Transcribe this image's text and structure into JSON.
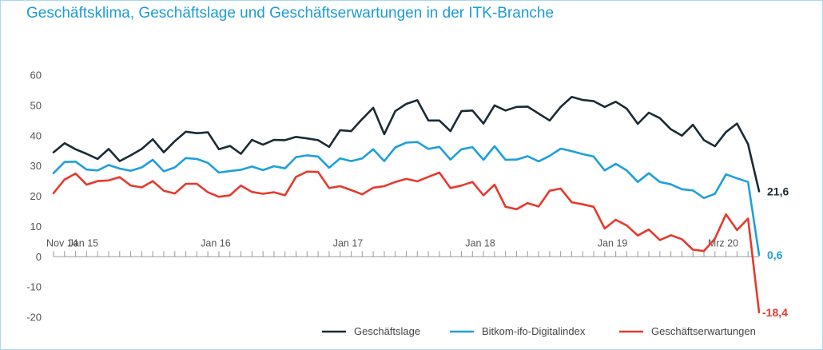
{
  "chart_data": {
    "type": "line",
    "title": "Geschäftsklima, Geschäftslage und Geschäftserwartungen in der ITK-Branche",
    "xlabel": "",
    "ylabel": "",
    "ylim": [
      -20,
      60
    ],
    "yticks": [
      60,
      50,
      40,
      30,
      20,
      10,
      0,
      -10,
      -20
    ],
    "grid": false,
    "legend_position": "bottom-right",
    "x_labels": [
      {
        "index": 0,
        "label": "Nov 14"
      },
      {
        "index": 2,
        "label": "Jan 15"
      },
      {
        "index": 14,
        "label": "Jan 16"
      },
      {
        "index": 26,
        "label": "Jan 17"
      },
      {
        "index": 38,
        "label": "Jan 18"
      },
      {
        "index": 50,
        "label": "Jan 19"
      },
      {
        "index": 60,
        "label": "Mrz 20"
      }
    ],
    "series": [
      {
        "name": "Geschäftslage",
        "color": "#1a2b33",
        "end_label": "21,6",
        "values": [
          34.5,
          37.5,
          35.5,
          34,
          32.3,
          35.6,
          31.6,
          33.5,
          35.6,
          38.8,
          34.5,
          38.2,
          41.3,
          40.8,
          41.1,
          35.5,
          36.6,
          34,
          38.6,
          37,
          38.6,
          38.5,
          39.6,
          39.1,
          38.5,
          36.3,
          41.8,
          41.5,
          45.5,
          49.2,
          40.5,
          48.1,
          50.5,
          51.7,
          45,
          45,
          41.5,
          48.1,
          48.3,
          44,
          50,
          48.3,
          49.5,
          49.6,
          47.3,
          45,
          49.5,
          52.8,
          51.8,
          51.4,
          49.5,
          51.2,
          48.9,
          43.9,
          47.6,
          45.8,
          42.1,
          40,
          43.6,
          38.5,
          36.5,
          41.2,
          44,
          37.2,
          21.6
        ]
      },
      {
        "name": "Bitkom-ifo-Digitalindex",
        "color": "#1e9fdc",
        "end_label": "0,6",
        "values": [
          27.6,
          31.3,
          31.4,
          28.8,
          28.5,
          30.3,
          29.1,
          28.4,
          29.5,
          32,
          28.2,
          29.5,
          32.6,
          32.3,
          31,
          27.8,
          28.3,
          28.7,
          29.8,
          28.6,
          29.9,
          29.2,
          32.9,
          33.5,
          33.1,
          29.4,
          32.5,
          31.6,
          32.5,
          35.5,
          31.6,
          36.1,
          37.7,
          37.9,
          35.6,
          36.3,
          32.1,
          35.5,
          36.2,
          32,
          36.5,
          32,
          32.1,
          33.2,
          31.5,
          33.3,
          35.7,
          34.9,
          33.9,
          33.1,
          28.5,
          30.7,
          28.5,
          24.7,
          27.6,
          24.7,
          23.9,
          22.3,
          21.9,
          19.4,
          20.8,
          27.2,
          25.9,
          24.7,
          0.6
        ]
      },
      {
        "name": "Geschäftserwartungen",
        "color": "#e63a2d",
        "end_label": "-18,4",
        "values": [
          21,
          25.5,
          27.5,
          23.8,
          25,
          25.2,
          26.3,
          23.5,
          22.9,
          25,
          21.8,
          20.9,
          24.1,
          24.1,
          21.3,
          19.8,
          20.3,
          23.5,
          21.4,
          20.8,
          21.3,
          20.3,
          26.4,
          28.1,
          28,
          22.7,
          23.3,
          22,
          20.6,
          22.8,
          23.3,
          24.7,
          25.7,
          24.9,
          26.4,
          27.8,
          22.7,
          23.5,
          24.7,
          20.3,
          23.8,
          16.5,
          15.7,
          17.7,
          16.6,
          21.8,
          22.5,
          18,
          17.3,
          16.5,
          9.3,
          12.2,
          10.3,
          7,
          9,
          5.5,
          7.1,
          5.8,
          2.3,
          1.9,
          6,
          14,
          8.8,
          12.6,
          -18.4
        ]
      }
    ]
  }
}
